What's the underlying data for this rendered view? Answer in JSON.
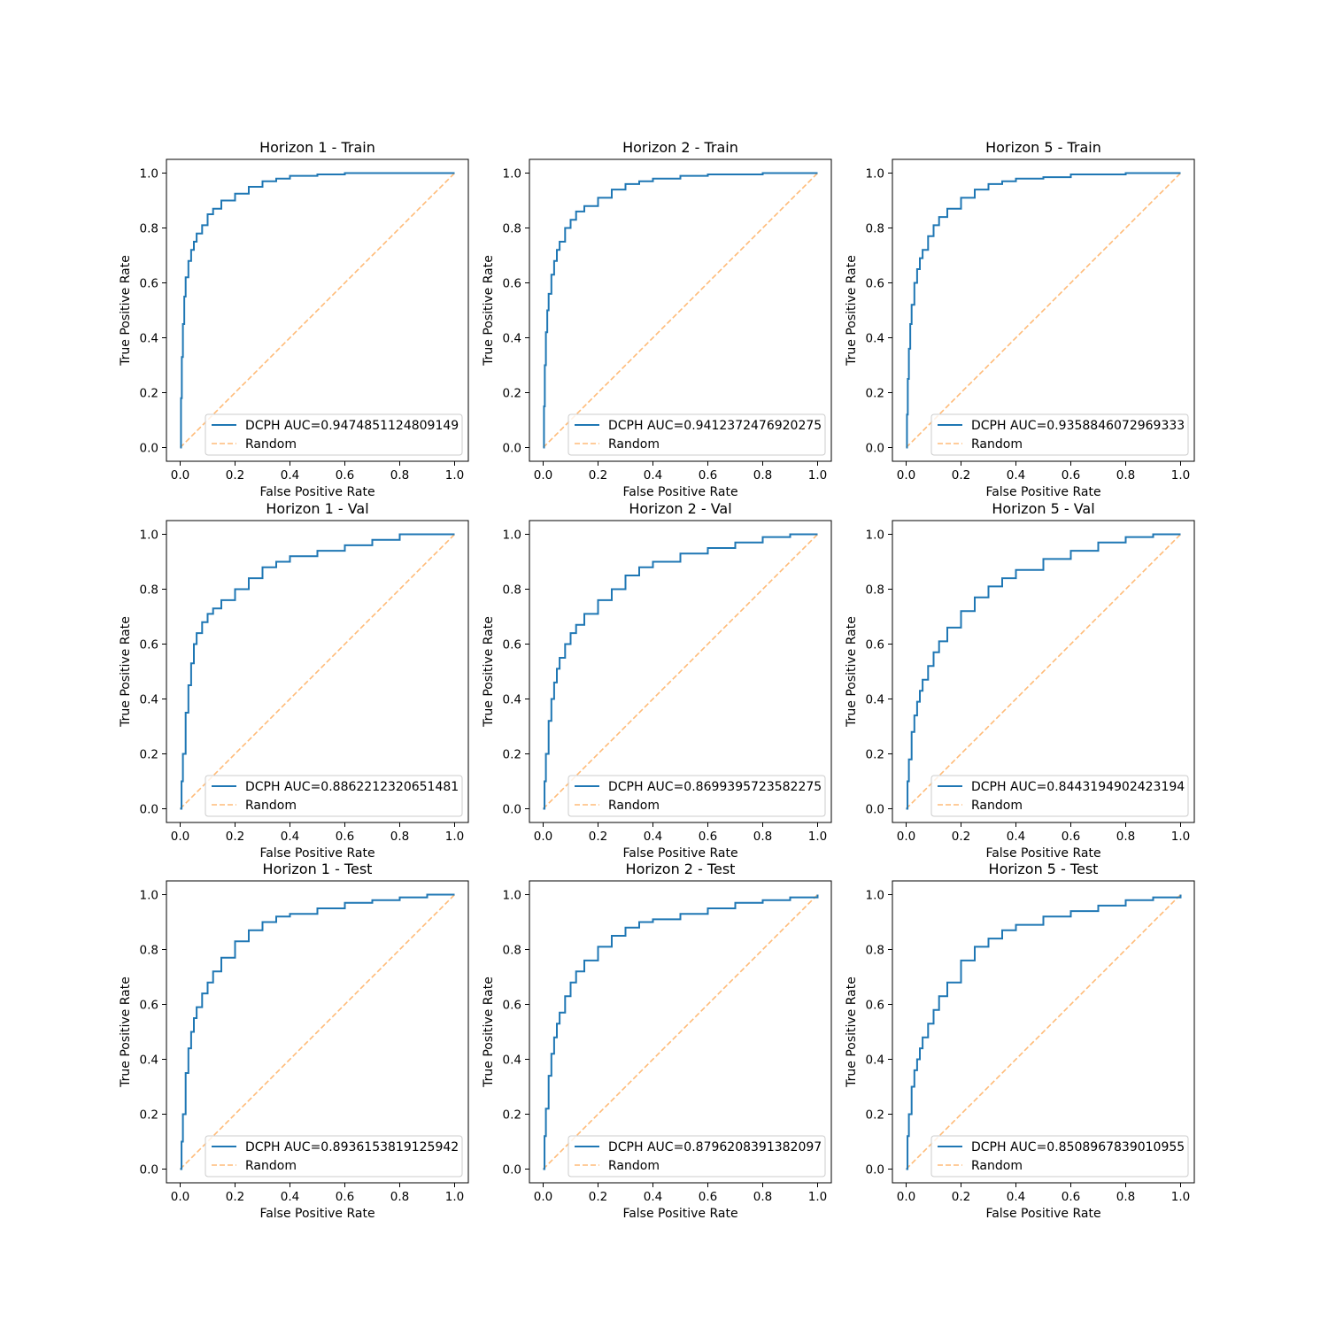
{
  "colors": {
    "roc_line": "#1f77b4",
    "random_line": "#ffbb78",
    "axes": "#000000",
    "legend_border": "#cccccc"
  },
  "chart_data": [
    {
      "type": "line",
      "title": "Horizon 1 - Train",
      "xlabel": "False Positive Rate",
      "ylabel": "True Positive Rate",
      "xlim": [
        0,
        1
      ],
      "ylim": [
        0,
        1
      ],
      "xticks": [
        "0.0",
        "0.2",
        "0.4",
        "0.6",
        "0.8",
        "1.0"
      ],
      "yticks": [
        "0.0",
        "0.2",
        "0.4",
        "0.6",
        "0.8",
        "1.0"
      ],
      "grid": false,
      "legend_position": "lower right",
      "series": [
        {
          "name": "DCPH AUC=0.9474851124809149",
          "style": "solid",
          "x": [
            0,
            0.003,
            0.006,
            0.01,
            0.015,
            0.02,
            0.03,
            0.04,
            0.05,
            0.06,
            0.08,
            0.1,
            0.12,
            0.15,
            0.2,
            0.25,
            0.3,
            0.35,
            0.4,
            0.5,
            0.6,
            0.8,
            1.0
          ],
          "y": [
            0,
            0.18,
            0.33,
            0.45,
            0.55,
            0.62,
            0.68,
            0.72,
            0.75,
            0.78,
            0.81,
            0.85,
            0.87,
            0.9,
            0.925,
            0.95,
            0.97,
            0.98,
            0.99,
            0.995,
            1.0,
            1.0,
            1.0
          ]
        },
        {
          "name": "Random",
          "style": "dashed",
          "x": [
            0,
            1
          ],
          "y": [
            0,
            1
          ]
        }
      ]
    },
    {
      "type": "line",
      "title": "Horizon 2 - Train",
      "xlabel": "False Positive Rate",
      "ylabel": "True Positive Rate",
      "xlim": [
        0,
        1
      ],
      "ylim": [
        0,
        1
      ],
      "xticks": [
        "0.0",
        "0.2",
        "0.4",
        "0.6",
        "0.8",
        "1.0"
      ],
      "yticks": [
        "0.0",
        "0.2",
        "0.4",
        "0.6",
        "0.8",
        "1.0"
      ],
      "grid": false,
      "legend_position": "lower right",
      "series": [
        {
          "name": "DCPH AUC=0.9412372476920275",
          "style": "solid",
          "x": [
            0,
            0.003,
            0.006,
            0.01,
            0.015,
            0.02,
            0.03,
            0.04,
            0.05,
            0.06,
            0.08,
            0.1,
            0.12,
            0.15,
            0.2,
            0.25,
            0.3,
            0.35,
            0.4,
            0.5,
            0.6,
            0.8,
            1.0
          ],
          "y": [
            0,
            0.15,
            0.3,
            0.42,
            0.5,
            0.56,
            0.63,
            0.68,
            0.72,
            0.75,
            0.8,
            0.83,
            0.86,
            0.88,
            0.91,
            0.94,
            0.96,
            0.97,
            0.98,
            0.99,
            0.995,
            1.0,
            1.0
          ]
        },
        {
          "name": "Random",
          "style": "dashed",
          "x": [
            0,
            1
          ],
          "y": [
            0,
            1
          ]
        }
      ]
    },
    {
      "type": "line",
      "title": "Horizon 5 - Train",
      "xlabel": "False Positive Rate",
      "ylabel": "True Positive Rate",
      "xlim": [
        0,
        1
      ],
      "ylim": [
        0,
        1
      ],
      "xticks": [
        "0.0",
        "0.2",
        "0.4",
        "0.6",
        "0.8",
        "1.0"
      ],
      "yticks": [
        "0.0",
        "0.2",
        "0.4",
        "0.6",
        "0.8",
        "1.0"
      ],
      "grid": false,
      "legend_position": "lower right",
      "series": [
        {
          "name": "DCPH AUC=0.9358846072969333",
          "style": "solid",
          "x": [
            0,
            0.003,
            0.006,
            0.01,
            0.015,
            0.02,
            0.03,
            0.04,
            0.05,
            0.06,
            0.08,
            0.1,
            0.12,
            0.15,
            0.2,
            0.25,
            0.3,
            0.35,
            0.4,
            0.5,
            0.6,
            0.8,
            1.0
          ],
          "y": [
            0,
            0.12,
            0.25,
            0.36,
            0.45,
            0.52,
            0.6,
            0.65,
            0.69,
            0.72,
            0.77,
            0.81,
            0.84,
            0.87,
            0.91,
            0.94,
            0.96,
            0.97,
            0.98,
            0.985,
            0.995,
            1.0,
            1.0
          ]
        },
        {
          "name": "Random",
          "style": "dashed",
          "x": [
            0,
            1
          ],
          "y": [
            0,
            1
          ]
        }
      ]
    },
    {
      "type": "line",
      "title": "Horizon 1 - Val",
      "xlabel": "False Positive Rate",
      "ylabel": "True Positive Rate",
      "xlim": [
        0,
        1
      ],
      "ylim": [
        0,
        1
      ],
      "xticks": [
        "0.0",
        "0.2",
        "0.4",
        "0.6",
        "0.8",
        "1.0"
      ],
      "yticks": [
        "0.0",
        "0.2",
        "0.4",
        "0.6",
        "0.8",
        "1.0"
      ],
      "grid": false,
      "legend_position": "lower right",
      "series": [
        {
          "name": "DCPH AUC=0.8862212320651481",
          "style": "solid",
          "x": [
            0,
            0.005,
            0.01,
            0.02,
            0.03,
            0.04,
            0.05,
            0.06,
            0.08,
            0.1,
            0.12,
            0.15,
            0.2,
            0.25,
            0.3,
            0.35,
            0.4,
            0.5,
            0.6,
            0.7,
            0.8,
            0.9,
            1.0
          ],
          "y": [
            0,
            0.1,
            0.2,
            0.35,
            0.45,
            0.53,
            0.6,
            0.64,
            0.68,
            0.71,
            0.73,
            0.76,
            0.8,
            0.84,
            0.88,
            0.9,
            0.92,
            0.94,
            0.96,
            0.98,
            1.0,
            1.0,
            1.0
          ]
        },
        {
          "name": "Random",
          "style": "dashed",
          "x": [
            0,
            1
          ],
          "y": [
            0,
            1
          ]
        }
      ]
    },
    {
      "type": "line",
      "title": "Horizon 2 - Val",
      "xlabel": "False Positive Rate",
      "ylabel": "True Positive Rate",
      "xlim": [
        0,
        1
      ],
      "ylim": [
        0,
        1
      ],
      "xticks": [
        "0.0",
        "0.2",
        "0.4",
        "0.6",
        "0.8",
        "1.0"
      ],
      "yticks": [
        "0.0",
        "0.2",
        "0.4",
        "0.6",
        "0.8",
        "1.0"
      ],
      "grid": false,
      "legend_position": "lower right",
      "series": [
        {
          "name": "DCPH AUC=0.8699395723582275",
          "style": "solid",
          "x": [
            0,
            0.005,
            0.01,
            0.02,
            0.03,
            0.04,
            0.05,
            0.06,
            0.08,
            0.1,
            0.12,
            0.15,
            0.2,
            0.25,
            0.3,
            0.35,
            0.4,
            0.5,
            0.6,
            0.7,
            0.8,
            0.9,
            1.0
          ],
          "y": [
            0,
            0.1,
            0.2,
            0.32,
            0.4,
            0.46,
            0.51,
            0.55,
            0.6,
            0.64,
            0.67,
            0.71,
            0.76,
            0.8,
            0.85,
            0.88,
            0.9,
            0.93,
            0.95,
            0.97,
            0.99,
            1.0,
            1.0
          ]
        },
        {
          "name": "Random",
          "style": "dashed",
          "x": [
            0,
            1
          ],
          "y": [
            0,
            1
          ]
        }
      ]
    },
    {
      "type": "line",
      "title": "Horizon 5 - Val",
      "xlabel": "False Positive Rate",
      "ylabel": "True Positive Rate",
      "xlim": [
        0,
        1
      ],
      "ylim": [
        0,
        1
      ],
      "xticks": [
        "0.0",
        "0.2",
        "0.4",
        "0.6",
        "0.8",
        "1.0"
      ],
      "yticks": [
        "0.0",
        "0.2",
        "0.4",
        "0.6",
        "0.8",
        "1.0"
      ],
      "grid": false,
      "legend_position": "lower right",
      "series": [
        {
          "name": "DCPH AUC=0.8443194902423194",
          "style": "solid",
          "x": [
            0,
            0.005,
            0.01,
            0.02,
            0.03,
            0.04,
            0.05,
            0.06,
            0.08,
            0.1,
            0.12,
            0.15,
            0.2,
            0.25,
            0.3,
            0.35,
            0.4,
            0.5,
            0.6,
            0.7,
            0.8,
            0.9,
            1.0
          ],
          "y": [
            0,
            0.1,
            0.18,
            0.28,
            0.34,
            0.39,
            0.43,
            0.47,
            0.52,
            0.57,
            0.61,
            0.66,
            0.72,
            0.77,
            0.81,
            0.84,
            0.87,
            0.91,
            0.94,
            0.97,
            0.99,
            1.0,
            1.0
          ]
        },
        {
          "name": "Random",
          "style": "dashed",
          "x": [
            0,
            1
          ],
          "y": [
            0,
            1
          ]
        }
      ]
    },
    {
      "type": "line",
      "title": "Horizon 1 - Test",
      "xlabel": "False Positive Rate",
      "ylabel": "True Positive Rate",
      "xlim": [
        0,
        1
      ],
      "ylim": [
        0,
        1
      ],
      "xticks": [
        "0.0",
        "0.2",
        "0.4",
        "0.6",
        "0.8",
        "1.0"
      ],
      "yticks": [
        "0.0",
        "0.2",
        "0.4",
        "0.6",
        "0.8",
        "1.0"
      ],
      "grid": false,
      "legend_position": "lower right",
      "series": [
        {
          "name": "DCPH AUC=0.8936153819125942",
          "style": "solid",
          "x": [
            0,
            0.005,
            0.01,
            0.02,
            0.03,
            0.04,
            0.05,
            0.06,
            0.08,
            0.1,
            0.12,
            0.15,
            0.2,
            0.25,
            0.3,
            0.35,
            0.4,
            0.5,
            0.6,
            0.7,
            0.8,
            0.9,
            1.0
          ],
          "y": [
            0,
            0.1,
            0.2,
            0.35,
            0.44,
            0.5,
            0.55,
            0.59,
            0.64,
            0.68,
            0.72,
            0.77,
            0.83,
            0.87,
            0.9,
            0.92,
            0.93,
            0.95,
            0.97,
            0.98,
            0.99,
            1.0,
            1.0
          ]
        },
        {
          "name": "Random",
          "style": "dashed",
          "x": [
            0,
            1
          ],
          "y": [
            0,
            1
          ]
        }
      ]
    },
    {
      "type": "line",
      "title": "Horizon 2 - Test",
      "xlabel": "False Positive Rate",
      "ylabel": "True Positive Rate",
      "xlim": [
        0,
        1
      ],
      "ylim": [
        0,
        1
      ],
      "xticks": [
        "0.0",
        "0.2",
        "0.4",
        "0.6",
        "0.8",
        "1.0"
      ],
      "yticks": [
        "0.0",
        "0.2",
        "0.4",
        "0.6",
        "0.8",
        "1.0"
      ],
      "grid": false,
      "legend_position": "lower right",
      "series": [
        {
          "name": "DCPH AUC=0.8796208391382097",
          "style": "solid",
          "x": [
            0,
            0.005,
            0.01,
            0.02,
            0.03,
            0.04,
            0.05,
            0.06,
            0.08,
            0.1,
            0.12,
            0.15,
            0.2,
            0.25,
            0.3,
            0.35,
            0.4,
            0.5,
            0.6,
            0.7,
            0.8,
            0.9,
            1.0
          ],
          "y": [
            0,
            0.12,
            0.22,
            0.34,
            0.42,
            0.48,
            0.53,
            0.57,
            0.63,
            0.68,
            0.72,
            0.76,
            0.81,
            0.85,
            0.88,
            0.9,
            0.91,
            0.93,
            0.95,
            0.97,
            0.98,
            0.99,
            1.0
          ]
        },
        {
          "name": "Random",
          "style": "dashed",
          "x": [
            0,
            1
          ],
          "y": [
            0,
            1
          ]
        }
      ]
    },
    {
      "type": "line",
      "title": "Horizon 5 - Test",
      "xlabel": "False Positive Rate",
      "ylabel": "True Positive Rate",
      "xlim": [
        0,
        1
      ],
      "ylim": [
        0,
        1
      ],
      "xticks": [
        "0.0",
        "0.2",
        "0.4",
        "0.6",
        "0.8",
        "1.0"
      ],
      "yticks": [
        "0.0",
        "0.2",
        "0.4",
        "0.6",
        "0.8",
        "1.0"
      ],
      "grid": false,
      "legend_position": "lower right",
      "series": [
        {
          "name": "DCPH AUC=0.8508967839010955",
          "style": "solid",
          "x": [
            0,
            0.005,
            0.01,
            0.02,
            0.03,
            0.04,
            0.05,
            0.06,
            0.08,
            0.1,
            0.12,
            0.15,
            0.2,
            0.25,
            0.3,
            0.35,
            0.4,
            0.5,
            0.6,
            0.7,
            0.8,
            0.9,
            1.0
          ],
          "y": [
            0,
            0.12,
            0.2,
            0.3,
            0.36,
            0.4,
            0.44,
            0.48,
            0.53,
            0.58,
            0.63,
            0.68,
            0.76,
            0.81,
            0.84,
            0.87,
            0.89,
            0.92,
            0.94,
            0.96,
            0.98,
            0.99,
            1.0
          ]
        },
        {
          "name": "Random",
          "style": "dashed",
          "x": [
            0,
            1
          ],
          "y": [
            0,
            1
          ]
        }
      ]
    }
  ]
}
